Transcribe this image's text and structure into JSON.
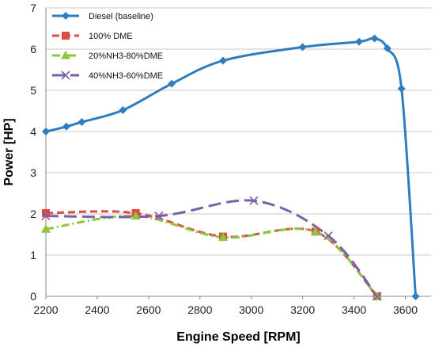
{
  "chart_data": {
    "type": "line",
    "title": "",
    "xlabel": "Engine Speed [RPM]",
    "ylabel": "Power [HP]",
    "xlim": [
      2200,
      3700
    ],
    "ylim": [
      0,
      7
    ],
    "xticks": [
      2200,
      2400,
      2600,
      2800,
      3000,
      3200,
      3400,
      3600
    ],
    "yticks": [
      0,
      1,
      2,
      3,
      4,
      5,
      6,
      7
    ],
    "grid": "horizontal",
    "legend_position": "top-left",
    "series": [
      {
        "name": "Diesel (baseline)",
        "color": "#2E7DBF",
        "dash": "solid",
        "marker": "diamond",
        "x": [
          2200,
          2280,
          2340,
          2500,
          2690,
          2890,
          3200,
          3420,
          3480,
          3530,
          3585,
          3640
        ],
        "y": [
          4.0,
          4.12,
          4.23,
          4.52,
          5.16,
          5.72,
          6.05,
          6.18,
          6.26,
          6.02,
          5.04,
          0.0
        ]
      },
      {
        "name": "100% DME",
        "color": "#E04A44",
        "dash": "dashed",
        "marker": "square",
        "x": [
          2200,
          2550,
          2890,
          3250,
          3490
        ],
        "y": [
          2.02,
          2.02,
          1.45,
          1.57,
          0.0
        ]
      },
      {
        "name": "20%NH3-80%DME",
        "color": "#8CC63E",
        "dash": "dashdot",
        "marker": "triangle",
        "x": [
          2200,
          2550,
          2890,
          3250,
          3490
        ],
        "y": [
          1.63,
          1.95,
          1.43,
          1.57,
          0.0
        ]
      },
      {
        "name": "40%NH3-60%DME",
        "color": "#7B5FA8",
        "dash": "longdash",
        "marker": "x",
        "x": [
          2200,
          2640,
          3010,
          3300,
          3490
        ],
        "y": [
          1.95,
          1.95,
          2.32,
          1.47,
          0.0
        ]
      }
    ]
  }
}
